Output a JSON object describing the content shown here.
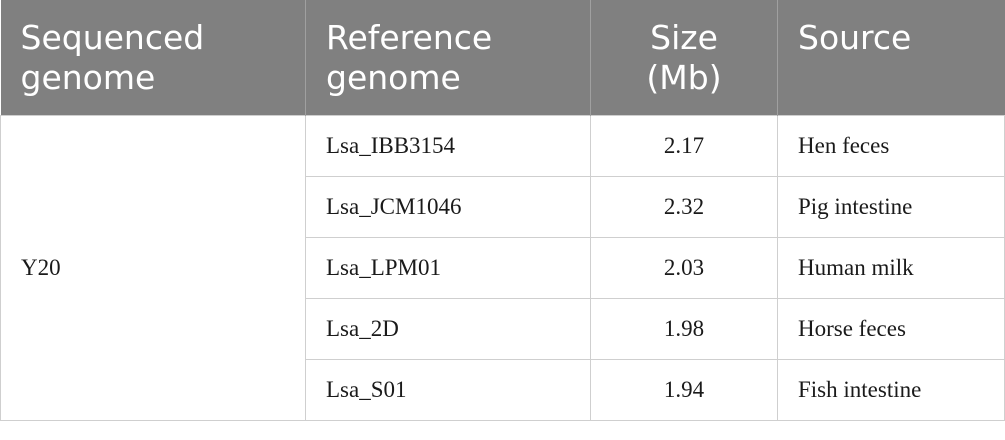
{
  "table": {
    "header": [
      "Sequenced genome",
      "Reference genome",
      "Size (Mb)",
      "Source"
    ],
    "group": "Y20",
    "rows": [
      [
        "Lsa_IBB3154",
        2.17,
        "Hen feces"
      ],
      [
        "Lsa_JCM1046",
        2.32,
        "Pig intestine"
      ],
      [
        "Lsa_LPM01",
        2.03,
        "Human milk"
      ],
      [
        "Lsa_2D",
        1.98,
        "Horse feces"
      ],
      [
        "Lsa_S01",
        1.94,
        "Fish intestine"
      ]
    ]
  }
}
